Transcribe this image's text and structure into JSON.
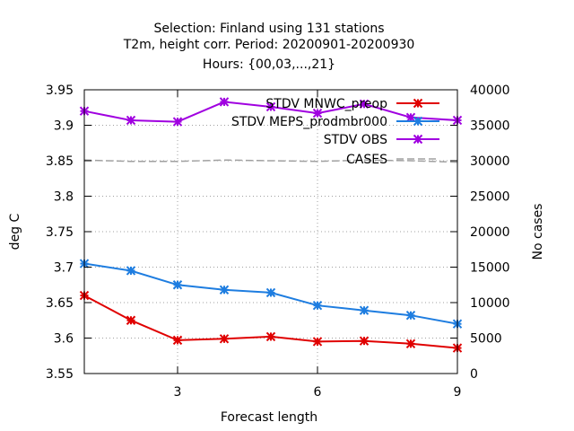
{
  "chart_data": {
    "type": "line",
    "title_lines": [
      "Selection: Finland using   131 stations",
      "T2m, height corr.   Period: 20200901-20200930",
      "Hours: {00,03,...,21}"
    ],
    "xlabel": "Forecast length",
    "ylabel": "deg C",
    "y2label": "No cases",
    "xlim": [
      1,
      9
    ],
    "ylim": [
      3.55,
      3.95
    ],
    "y2lim": [
      0,
      40000
    ],
    "xticks": [
      3,
      6,
      9
    ],
    "yticks": [
      3.55,
      3.6,
      3.65,
      3.7,
      3.75,
      3.8,
      3.85,
      3.9,
      3.95
    ],
    "y2ticks": [
      0,
      5000,
      10000,
      15000,
      20000,
      25000,
      30000,
      35000,
      40000
    ],
    "grid": true,
    "legend_position": "top-right",
    "x": [
      1,
      2,
      3,
      4,
      5,
      6,
      7,
      8,
      9
    ],
    "series": [
      {
        "name": "STDV MNWC_preop",
        "color": "#e00000",
        "axis": "y",
        "marker": "star",
        "values": [
          3.66,
          3.625,
          3.597,
          3.599,
          3.602,
          3.595,
          3.596,
          3.592,
          3.586
        ]
      },
      {
        "name": "STDV MEPS_prodmbr000",
        "color": "#1e7de0",
        "axis": "y",
        "marker": "star",
        "values": [
          3.705,
          3.695,
          3.675,
          3.668,
          3.664,
          3.646,
          3.639,
          3.632,
          3.62
        ]
      },
      {
        "name": "STDV OBS",
        "color": "#a000e0",
        "axis": "y",
        "marker": "star",
        "values": [
          3.92,
          3.907,
          3.905,
          3.933,
          3.926,
          3.917,
          3.93,
          3.911,
          3.907
        ]
      },
      {
        "name": "CASES",
        "color": "#a0a0a0",
        "axis": "y2",
        "marker": "none",
        "dashed": true,
        "values": [
          30100,
          29900,
          29900,
          30100,
          30000,
          29900,
          30100,
          30000,
          29800
        ]
      }
    ]
  }
}
